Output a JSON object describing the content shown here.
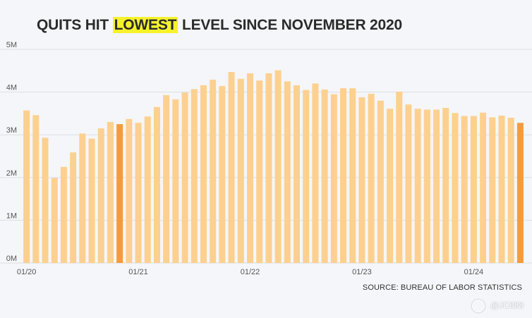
{
  "title": {
    "prefix": "QUITS HIT",
    "highlight": "LOWEST",
    "suffix": "LEVEL SINCE NOVEMBER 2020"
  },
  "source": "SOURCE: BUREAU OF LABOR STATISTICS",
  "watermark": "@JC888",
  "colors": {
    "bar": "#fdd08f",
    "bar_highlight": "#f59b3d",
    "grid": "#dcdfe4",
    "axis_text": "#555555",
    "background": "#f4f6f9",
    "title_highlight": "#f5f22c"
  },
  "chart_data": {
    "type": "bar",
    "ylim": [
      0,
      5
    ],
    "yticks": [
      0,
      1,
      2,
      3,
      4,
      5
    ],
    "ytick_labels": [
      "0M",
      "1M",
      "2M",
      "3M",
      "4M",
      "5M"
    ],
    "xtick_labels": [
      {
        "index": 0,
        "label": "01/20"
      },
      {
        "index": 12,
        "label": "01/21"
      },
      {
        "index": 24,
        "label": "01/22"
      },
      {
        "index": 36,
        "label": "01/23"
      },
      {
        "index": 48,
        "label": "01/24"
      }
    ],
    "grid": true,
    "highlighted_indices": [
      10,
      53
    ],
    "values": [
      3.57,
      3.46,
      2.93,
      1.99,
      2.25,
      2.59,
      3.03,
      2.91,
      3.15,
      3.3,
      3.25,
      3.37,
      3.28,
      3.43,
      3.65,
      3.93,
      3.83,
      3.99,
      4.07,
      4.16,
      4.29,
      4.14,
      4.47,
      4.31,
      4.44,
      4.27,
      4.44,
      4.51,
      4.25,
      4.16,
      4.05,
      4.2,
      4.06,
      3.95,
      4.09,
      4.09,
      3.88,
      3.96,
      3.8,
      3.61,
      4.01,
      3.71,
      3.61,
      3.59,
      3.59,
      3.63,
      3.51,
      3.44,
      3.44,
      3.52,
      3.41,
      3.45,
      3.4,
      3.28
    ]
  }
}
